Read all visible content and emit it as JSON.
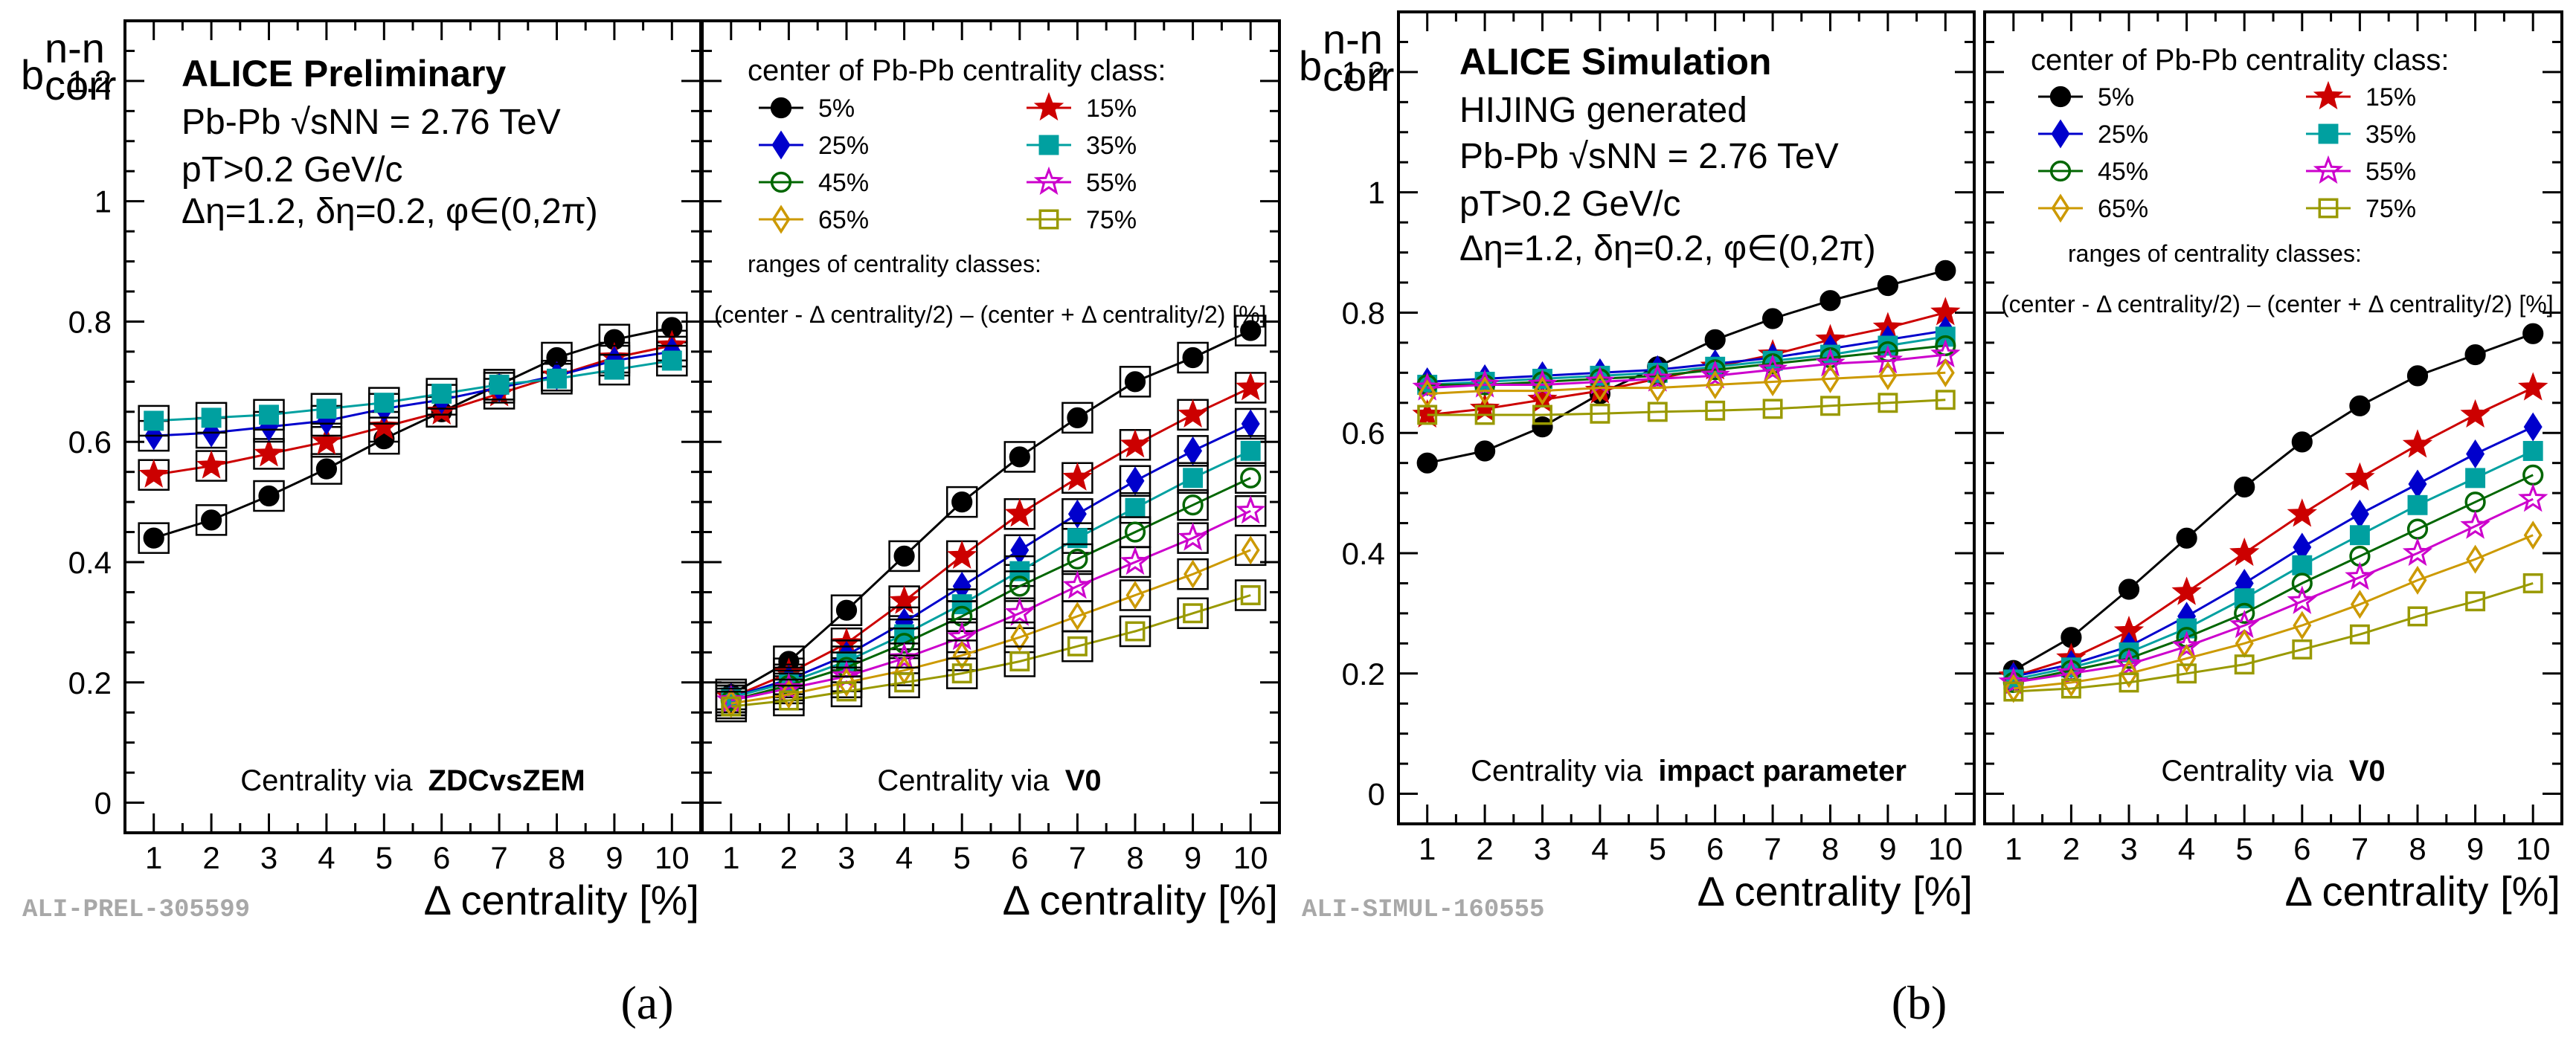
{
  "figure": {
    "caption_a": "(a)",
    "caption_b": "(b)",
    "legend_labels": [
      "5%",
      "15%",
      "25%",
      "35%",
      "45%",
      "55%",
      "65%",
      "75%"
    ],
    "legend_title": "center of Pb-Pb centrality class:",
    "ranges_note_1": "ranges of centrality classes:",
    "ranges_note_2": "(center - Δ centrality/2) – (center + Δ centrality/2) [%]",
    "ylabel": "b corr n-n",
    "xlabel": "Δ centrality [%]",
    "series_colors": [
      "#000000",
      "#cc0000",
      "#0000cc",
      "#00a0a0",
      "#006600",
      "#cc00cc",
      "#cc9900",
      "#999900"
    ],
    "series_markers": [
      "filled-circle",
      "filled-star",
      "filled-diamond",
      "filled-square",
      "open-circle",
      "open-star",
      "open-diamond",
      "open-square"
    ]
  },
  "panel_a_left": {
    "header": "ALICE Preliminary",
    "info": [
      "Pb-Pb √sNN = 2.76 TeV",
      "pT>0.2 GeV/c",
      "Δη=1.2, δη=0.2, φ∈(0,2π)"
    ],
    "centrality_prefix": "Centrality via",
    "centrality_bold": "ZDCvsZEM",
    "tag": "ALI-PREL-305599"
  },
  "panel_a_right": {
    "centrality_prefix": "Centrality via",
    "centrality_bold": "V0"
  },
  "panel_b_left": {
    "header": "ALICE Simulation",
    "info": [
      "HIJING generated",
      "Pb-Pb √sNN = 2.76 TeV",
      "pT>0.2 GeV/c",
      "Δη=1.2, δη=0.2, φ∈(0,2π)"
    ],
    "centrality_prefix": "Centrality via",
    "centrality_bold": "impact parameter",
    "tag": "ALI-SIMUL-160555"
  },
  "panel_b_right": {
    "centrality_prefix": "Centrality via",
    "centrality_bold": "V0"
  },
  "chart_data": [
    {
      "type": "line",
      "panel": "a-left",
      "x": [
        1,
        2,
        3,
        4,
        5,
        6,
        7,
        8,
        9,
        10
      ],
      "xlim": [
        0.5,
        10.5
      ],
      "ylim": [
        -0.05,
        1.3
      ],
      "yticks": [
        0,
        0.2,
        0.4,
        0.6,
        0.8,
        1,
        1.2
      ],
      "series": [
        {
          "name": "5%",
          "values": [
            0.44,
            0.47,
            0.51,
            0.555,
            0.605,
            0.65,
            0.695,
            0.74,
            0.77,
            0.79
          ]
        },
        {
          "name": "15%",
          "values": [
            0.545,
            0.56,
            0.58,
            0.6,
            0.625,
            0.65,
            0.68,
            0.71,
            0.74,
            0.76
          ]
        },
        {
          "name": "25%",
          "values": [
            0.61,
            0.615,
            0.625,
            0.635,
            0.655,
            0.67,
            0.69,
            0.71,
            0.735,
            0.75
          ]
        },
        {
          "name": "35%",
          "values": [
            0.635,
            0.64,
            0.645,
            0.655,
            0.665,
            0.68,
            0.695,
            0.705,
            0.72,
            0.735
          ]
        }
      ]
    },
    {
      "type": "line",
      "panel": "a-right",
      "x": [
        1,
        2,
        3,
        4,
        5,
        6,
        7,
        8,
        9,
        10
      ],
      "xlim": [
        0.5,
        10.5
      ],
      "ylim": [
        -0.05,
        1.3
      ],
      "series": [
        {
          "name": "5%",
          "values": [
            0.18,
            0.235,
            0.32,
            0.41,
            0.5,
            0.575,
            0.64,
            0.7,
            0.74,
            0.785
          ]
        },
        {
          "name": "15%",
          "values": [
            0.175,
            0.215,
            0.265,
            0.335,
            0.41,
            0.48,
            0.54,
            0.595,
            0.645,
            0.69
          ]
        },
        {
          "name": "25%",
          "values": [
            0.175,
            0.205,
            0.245,
            0.3,
            0.36,
            0.42,
            0.48,
            0.535,
            0.585,
            0.63
          ]
        },
        {
          "name": "35%",
          "values": [
            0.175,
            0.2,
            0.235,
            0.28,
            0.33,
            0.385,
            0.44,
            0.49,
            0.54,
            0.585
          ]
        },
        {
          "name": "45%",
          "values": [
            0.17,
            0.195,
            0.225,
            0.265,
            0.31,
            0.36,
            0.405,
            0.45,
            0.495,
            0.54
          ]
        },
        {
          "name": "55%",
          "values": [
            0.17,
            0.19,
            0.21,
            0.24,
            0.275,
            0.315,
            0.36,
            0.4,
            0.44,
            0.485
          ]
        },
        {
          "name": "65%",
          "values": [
            0.165,
            0.18,
            0.2,
            0.22,
            0.245,
            0.275,
            0.31,
            0.345,
            0.38,
            0.42
          ]
        },
        {
          "name": "75%",
          "values": [
            0.16,
            0.17,
            0.185,
            0.2,
            0.215,
            0.235,
            0.26,
            0.285,
            0.315,
            0.345
          ]
        }
      ]
    },
    {
      "type": "line",
      "panel": "b-left",
      "x": [
        1,
        2,
        3,
        4,
        5,
        6,
        7,
        8,
        9,
        10
      ],
      "xlim": [
        0.5,
        10.5
      ],
      "ylim": [
        -0.05,
        1.3
      ],
      "yticks": [
        0,
        0.2,
        0.4,
        0.6,
        0.8,
        1,
        1.2
      ],
      "series": [
        {
          "name": "5%",
          "values": [
            0.55,
            0.57,
            0.61,
            0.665,
            0.71,
            0.755,
            0.79,
            0.82,
            0.845,
            0.87
          ]
        },
        {
          "name": "15%",
          "values": [
            0.63,
            0.64,
            0.655,
            0.67,
            0.69,
            0.71,
            0.73,
            0.755,
            0.775,
            0.8
          ]
        },
        {
          "name": "25%",
          "values": [
            0.685,
            0.69,
            0.695,
            0.7,
            0.705,
            0.715,
            0.725,
            0.74,
            0.755,
            0.77
          ]
        },
        {
          "name": "35%",
          "values": [
            0.68,
            0.685,
            0.69,
            0.695,
            0.7,
            0.71,
            0.72,
            0.73,
            0.745,
            0.76
          ]
        },
        {
          "name": "45%",
          "values": [
            0.68,
            0.68,
            0.685,
            0.69,
            0.695,
            0.705,
            0.715,
            0.725,
            0.735,
            0.745
          ]
        },
        {
          "name": "55%",
          "values": [
            0.675,
            0.68,
            0.68,
            0.685,
            0.69,
            0.695,
            0.705,
            0.715,
            0.72,
            0.73
          ]
        },
        {
          "name": "65%",
          "values": [
            0.665,
            0.67,
            0.67,
            0.675,
            0.675,
            0.68,
            0.685,
            0.69,
            0.695,
            0.7
          ]
        },
        {
          "name": "75%",
          "values": [
            0.63,
            0.63,
            0.63,
            0.632,
            0.635,
            0.637,
            0.64,
            0.645,
            0.65,
            0.655
          ]
        }
      ]
    },
    {
      "type": "line",
      "panel": "b-right",
      "x": [
        1,
        2,
        3,
        4,
        5,
        6,
        7,
        8,
        9,
        10
      ],
      "xlim": [
        0.5,
        10.5
      ],
      "ylim": [
        -0.05,
        1.3
      ],
      "series": [
        {
          "name": "5%",
          "values": [
            0.205,
            0.26,
            0.34,
            0.425,
            0.51,
            0.585,
            0.645,
            0.695,
            0.73,
            0.765
          ]
        },
        {
          "name": "15%",
          "values": [
            0.195,
            0.225,
            0.27,
            0.335,
            0.4,
            0.465,
            0.525,
            0.58,
            0.63,
            0.675
          ]
        },
        {
          "name": "25%",
          "values": [
            0.195,
            0.215,
            0.245,
            0.295,
            0.35,
            0.41,
            0.465,
            0.515,
            0.565,
            0.61
          ]
        },
        {
          "name": "35%",
          "values": [
            0.19,
            0.21,
            0.235,
            0.275,
            0.325,
            0.38,
            0.43,
            0.48,
            0.525,
            0.57
          ]
        },
        {
          "name": "45%",
          "values": [
            0.185,
            0.205,
            0.225,
            0.26,
            0.3,
            0.35,
            0.395,
            0.44,
            0.485,
            0.53
          ]
        },
        {
          "name": "55%",
          "values": [
            0.185,
            0.2,
            0.215,
            0.245,
            0.28,
            0.32,
            0.36,
            0.4,
            0.445,
            0.49
          ]
        },
        {
          "name": "65%",
          "values": [
            0.175,
            0.185,
            0.2,
            0.225,
            0.25,
            0.28,
            0.315,
            0.355,
            0.39,
            0.43
          ]
        },
        {
          "name": "75%",
          "values": [
            0.17,
            0.175,
            0.185,
            0.2,
            0.215,
            0.24,
            0.265,
            0.295,
            0.32,
            0.35
          ]
        }
      ]
    }
  ]
}
